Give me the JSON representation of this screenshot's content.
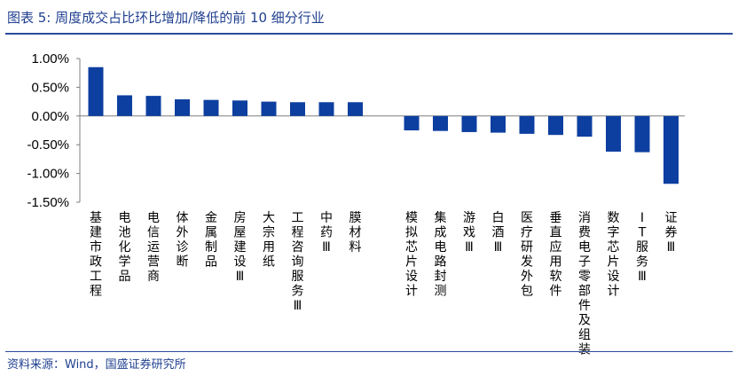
{
  "title": "图表 5:  周度成交占比环比增加/降低的前 10 细分行业",
  "source": "资料来源：Wind，国盛证券研究所",
  "colors": {
    "bar": "#0d3fa0",
    "accent": "#1f3f8f",
    "axis": "#7f7f7f"
  },
  "chart_data": {
    "type": "bar",
    "ylim": [
      -0.015,
      0.01
    ],
    "y_ticks": [
      0.01,
      0.005,
      0.0,
      -0.005,
      -0.01,
      -0.015
    ],
    "y_tick_labels": [
      "1.00%",
      "0.50%",
      "0.00%",
      "-0.50%",
      "-1.00%",
      "-1.50%"
    ],
    "categories": [
      "基建市政工程",
      "电池化学品",
      "电信运营商",
      "体外诊断",
      "金属制品",
      "房屋建设Ⅲ",
      "大宗用纸",
      "工程咨询服务Ⅲ",
      "中药Ⅲ",
      "膜材料",
      "模拟芯片设计",
      "集成电路封测",
      "游戏Ⅲ",
      "白酒Ⅲ",
      "医疗研发外包",
      "垂直应用软件",
      "消费电子零部件及组装",
      "数字芯片设计",
      "IT服务Ⅲ",
      "证券Ⅲ"
    ],
    "values": [
      0.0085,
      0.0036,
      0.0035,
      0.0029,
      0.0028,
      0.0027,
      0.0025,
      0.0024,
      0.0024,
      0.0024,
      -0.0025,
      -0.0026,
      -0.0028,
      -0.0029,
      -0.0031,
      -0.0033,
      -0.0036,
      -0.0062,
      -0.0063,
      -0.0118
    ]
  }
}
